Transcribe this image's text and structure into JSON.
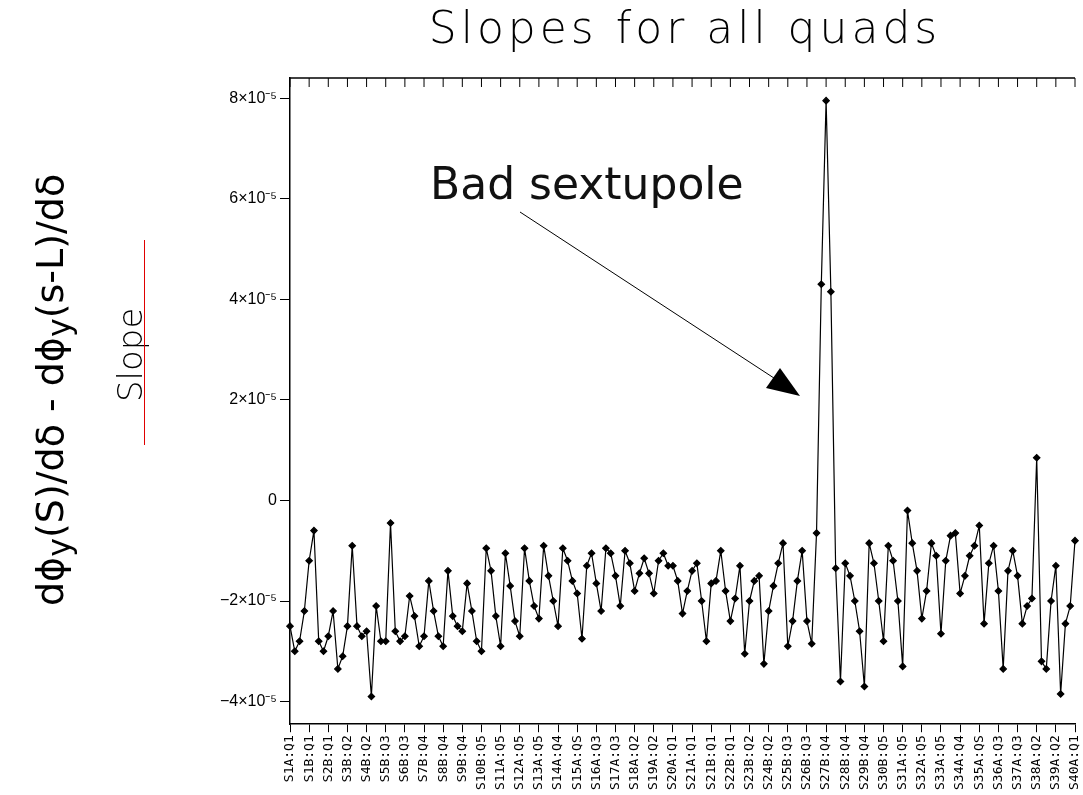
{
  "chart_data": {
    "type": "line",
    "title": "Slopes for all quads",
    "ylabel": "dϕ$_{y}$(S)/dδ - dϕ$_{y}$(s-L)/dδ",
    "annotations": [
      "Slope",
      "Bad sextupole"
    ],
    "categories": [
      "S1A:Q1",
      null,
      null,
      null,
      "S1B:Q1",
      null,
      null,
      null,
      "S2B:Q1",
      null,
      null,
      null,
      "S3B:Q2",
      null,
      null,
      null,
      "S4B:Q2",
      null,
      null,
      null,
      "S5B:Q3",
      null,
      null,
      null,
      "S6B:Q3",
      null,
      null,
      null,
      "S7B:Q4",
      null,
      null,
      null,
      "S8B:Q4",
      null,
      null,
      null,
      "S9B:Q4",
      null,
      null,
      null,
      "S10B:Q5",
      null,
      null,
      null,
      "S11A:Q5",
      null,
      null,
      null,
      "S12A:Q5",
      null,
      null,
      null,
      "S13A:Q5",
      null,
      null,
      null,
      "S14A:Q4",
      null,
      null,
      null,
      "S15A:QS",
      null,
      null,
      null,
      "S16A:Q3",
      null,
      null,
      null,
      "S17A:Q3",
      null,
      null,
      null,
      "S18A:Q2",
      null,
      null,
      null,
      "S19A:Q2",
      null,
      null,
      null,
      "S20A:Q1",
      null,
      null,
      null,
      "S21A:Q1",
      null,
      null,
      null,
      "S21B:Q1",
      null,
      null,
      null,
      "S22B:Q1",
      null,
      null,
      null,
      "S23B:Q2",
      null,
      null,
      null,
      "S24B:Q2",
      null,
      null,
      null,
      "S25B:Q3",
      null,
      null,
      null,
      "S26B:Q3",
      null,
      null,
      null,
      "S27B:Q4",
      null,
      null,
      null,
      "S28B:Q4",
      null,
      null,
      null,
      "S29B:Q4",
      null,
      null,
      null,
      "S30B:Q5",
      null,
      null,
      null,
      "S31A:Q5",
      null,
      null,
      null,
      "S32A:Q5",
      null,
      null,
      null,
      "S33A:Q5",
      null,
      null,
      null,
      "S34A:Q4",
      null,
      null,
      null,
      "S35A:QS",
      null,
      null,
      null,
      "S36A:Q3",
      null,
      null,
      null,
      "S37A:Q3",
      null,
      null,
      null,
      "S38A:Q2",
      null,
      null,
      null,
      "S39A:Q2",
      null,
      null,
      null,
      "S40A:Q1"
    ],
    "series": [
      {
        "color": "#000000",
        "values": [
          -2.5e-05,
          -3e-05,
          -2.8e-05,
          -2.2e-05,
          -1.2e-05,
          -6e-06,
          -2.8e-05,
          -3e-05,
          -2.7e-05,
          -2.2e-05,
          -3.35e-05,
          -3.1e-05,
          -2.5e-05,
          -9e-06,
          -2.5e-05,
          -2.7e-05,
          -2.6e-05,
          -3.9e-05,
          -2.1e-05,
          -2.8e-05,
          -2.8e-05,
          -4.5e-06,
          -2.6e-05,
          -2.8e-05,
          -2.7e-05,
          -1.9e-05,
          -2.3e-05,
          -2.9e-05,
          -2.7e-05,
          -1.6e-05,
          -2.2e-05,
          -2.7e-05,
          -2.9e-05,
          -1.4e-05,
          -2.3e-05,
          -2.5e-05,
          -2.6e-05,
          -1.65e-05,
          -2.2e-05,
          -2.8e-05,
          -3e-05,
          -9.5e-06,
          -1.4e-05,
          -2.3e-05,
          -2.9e-05,
          -1.05e-05,
          -1.7e-05,
          -2.4e-05,
          -2.7e-05,
          -9.5e-06,
          -1.6e-05,
          -2.1e-05,
          -2.35e-05,
          -9e-06,
          -1.5e-05,
          -2e-05,
          -2.5e-05,
          -9.5e-06,
          -1.2e-05,
          -1.6e-05,
          -1.85e-05,
          -2.75e-05,
          -1.3e-05,
          -1.05e-05,
          -1.65e-05,
          -2.2e-05,
          -9.5e-06,
          -1.05e-05,
          -1.5e-05,
          -2.1e-05,
          -1e-05,
          -1.25e-05,
          -1.8e-05,
          -1.45e-05,
          -1.15e-05,
          -1.45e-05,
          -1.85e-05,
          -1.2e-05,
          -1.05e-05,
          -1.3e-05,
          -1.3e-05,
          -1.6e-05,
          -2.25e-05,
          -1.8e-05,
          -1.4e-05,
          -1.25e-05,
          -2e-05,
          -2.8e-05,
          -1.65e-05,
          -1.6e-05,
          -1e-05,
          -1.8e-05,
          -2.4e-05,
          -1.95e-05,
          -1.3e-05,
          -3.05e-05,
          -2e-05,
          -1.6e-05,
          -1.5e-05,
          -3.25e-05,
          -2.2e-05,
          -1.7e-05,
          -1.25e-05,
          -8.5e-06,
          -2.9e-05,
          -2.4e-05,
          -1.6e-05,
          -1e-05,
          -2.4e-05,
          -2.85e-05,
          -6.5e-06,
          4.3e-05,
          7.95e-05,
          4.15e-05,
          -1.35e-05,
          -3.6e-05,
          -1.25e-05,
          -1.5e-05,
          -2e-05,
          -2.6e-05,
          -3.7e-05,
          -8.5e-06,
          -1.25e-05,
          -2e-05,
          -2.8e-05,
          -9e-06,
          -1.2e-05,
          -2e-05,
          -3.3e-05,
          -2e-06,
          -8.5e-06,
          -1.4e-05,
          -2.35e-05,
          -1.8e-05,
          -8.5e-06,
          -1.1e-05,
          -2.65e-05,
          -1.2e-05,
          -7e-06,
          -6.5e-06,
          -1.85e-05,
          -1.5e-05,
          -1.1e-05,
          -9e-06,
          -5e-06,
          -2.45e-05,
          -1.25e-05,
          -9e-06,
          -1.8e-05,
          -3.35e-05,
          -1.4e-05,
          -1e-05,
          -1.5e-05,
          -2.45e-05,
          -2.1e-05,
          -1.95e-05,
          8.5e-06,
          -3.2e-05,
          -3.35e-05,
          -2e-05,
          -1.3e-05,
          -3.85e-05,
          -2.45e-05,
          -2.1e-05,
          -8e-06
        ]
      }
    ],
    "ylim": [
      -4.45e-05,
      8.4e-05
    ],
    "yticks": [
      {
        "value": -4e-05,
        "label": "−4×10⁻⁵"
      },
      {
        "value": -2e-05,
        "label": "−2×10⁻⁵"
      },
      0,
      {
        "value": 2e-05,
        "label": "2×10⁻⁵"
      },
      {
        "value": 4e-05,
        "label": "4×10⁻⁵"
      },
      {
        "value": 6e-05,
        "label": "6×10⁻⁵"
      },
      {
        "value": 8e-05,
        "label": "8×10⁻⁵"
      }
    ],
    "grid": false,
    "legend": false,
    "marker": "diamond",
    "line_style": "solid"
  }
}
